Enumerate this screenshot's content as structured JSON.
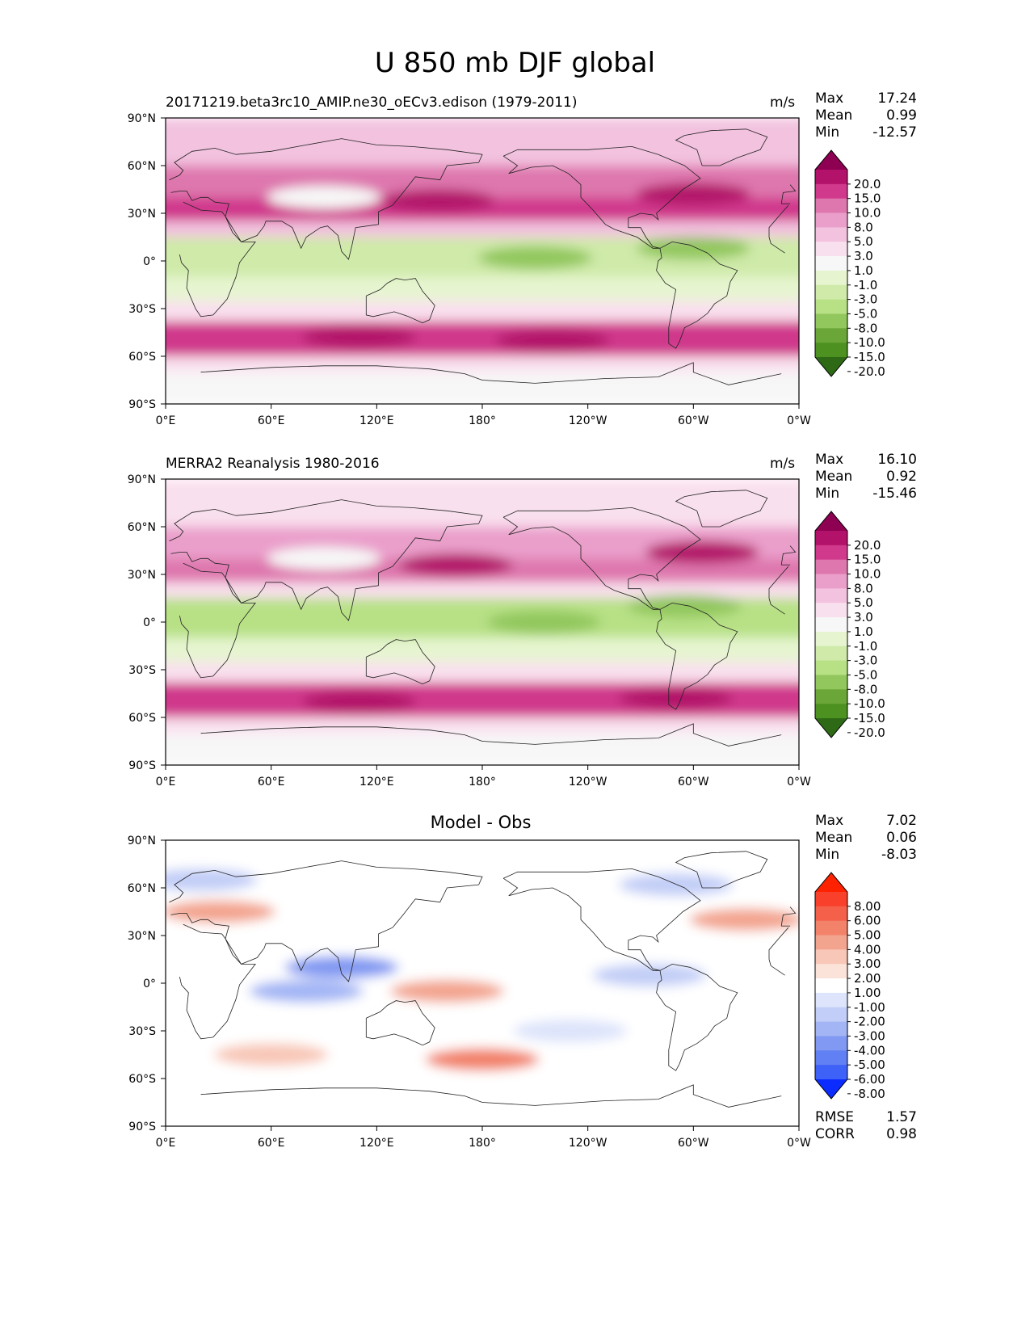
{
  "title": "U 850 mb DJF global",
  "panels": [
    {
      "id": "model",
      "title_left": "20171219.beta3rc10_AMIP.ne30_oECv3.edison (1979-2011)",
      "title_center": "",
      "units": "m/s",
      "stats": [
        {
          "label": "Max",
          "value": "17.24"
        },
        {
          "label": "Mean",
          "value": "0.99"
        },
        {
          "label": "Min",
          "value": "-12.57"
        }
      ],
      "extra_stats": []
    },
    {
      "id": "obs",
      "title_left": "MERRA2 Reanalysis 1980-2016",
      "title_center": "",
      "units": "m/s",
      "stats": [
        {
          "label": "Max",
          "value": "16.10"
        },
        {
          "label": "Mean",
          "value": "0.92"
        },
        {
          "label": "Min",
          "value": "-15.46"
        }
      ],
      "extra_stats": []
    },
    {
      "id": "diff",
      "title_left": "",
      "title_center": "Model - Obs",
      "units": "",
      "stats": [
        {
          "label": "Max",
          "value": "7.02"
        },
        {
          "label": "Mean",
          "value": "0.06"
        },
        {
          "label": "Min",
          "value": "-8.03"
        }
      ],
      "extra_stats": [
        {
          "label": "RMSE",
          "value": "1.57"
        },
        {
          "label": "CORR",
          "value": "0.98"
        }
      ]
    }
  ],
  "chart_data": [
    {
      "type": "heatmap",
      "variable": "U 850 mb DJF",
      "xlabel": "",
      "ylabel": "",
      "x_ticks": [
        "0°E",
        "60°E",
        "120°E",
        "180°",
        "120°W",
        "60°W",
        "0°W"
      ],
      "y_ticks": [
        "90°N",
        "60°N",
        "30°N",
        "0°",
        "30°S",
        "60°S",
        "90°S"
      ],
      "xlim": [
        0,
        360
      ],
      "ylim": [
        -90,
        90
      ],
      "colorbar": {
        "levels": [
          "20.0",
          "15.0",
          "10.0",
          "8.0",
          "5.0",
          "3.0",
          "1.0",
          "-1.0",
          "-3.0",
          "-5.0",
          "-8.0",
          "-10.0",
          "-15.0",
          "-20.0"
        ],
        "colors": [
          "#8e0152",
          "#b3126a",
          "#d0398c",
          "#de77ae",
          "#ea9fcb",
          "#f2c2df",
          "#f9e0ee",
          "#f7f7f7",
          "#e6f5d0",
          "#cfeaa9",
          "#b8e186",
          "#92c75d",
          "#6ba638",
          "#4d9221",
          "#2e6a16"
        ],
        "extend": "both"
      },
      "bands_by_latitude": [
        {
          "lat": [
            60,
            90
          ],
          "value": 3.0
        },
        {
          "lat": [
            40,
            60
          ],
          "value": 8.0
        },
        {
          "lat": [
            25,
            40
          ],
          "value": 10.0
        },
        {
          "lat": [
            15,
            25
          ],
          "value": 3.0
        },
        {
          "lat": [
            -10,
            15
          ],
          "value": -5.0
        },
        {
          "lat": [
            -25,
            -10
          ],
          "value": -3.0
        },
        {
          "lat": [
            -38,
            -25
          ],
          "value": 1.0
        },
        {
          "lat": [
            -60,
            -38
          ],
          "value": 12.0
        },
        {
          "lat": [
            -70,
            -60
          ],
          "value": 1.0
        },
        {
          "lat": [
            -90,
            -70
          ],
          "value": 0.0
        }
      ],
      "features": [
        {
          "lon": 155,
          "lat": 38,
          "value": 15.0
        },
        {
          "lon": 300,
          "lat": 42,
          "value": 15.0
        },
        {
          "lon": 110,
          "lat": -48,
          "value": 17.0
        },
        {
          "lon": 220,
          "lat": -50,
          "value": 17.0
        },
        {
          "lon": 210,
          "lat": 2,
          "value": -10.0
        },
        {
          "lon": 300,
          "lat": 8,
          "value": -10.0
        },
        {
          "lon": 90,
          "lat": 40,
          "value": 0.0
        }
      ]
    },
    {
      "type": "heatmap",
      "variable": "U 850 mb DJF",
      "xlabel": "",
      "ylabel": "",
      "x_ticks": [
        "0°E",
        "60°E",
        "120°E",
        "180°",
        "120°W",
        "60°W",
        "0°W"
      ],
      "y_ticks": [
        "90°N",
        "60°N",
        "30°N",
        "0°",
        "30°S",
        "60°S",
        "90°S"
      ],
      "xlim": [
        0,
        360
      ],
      "ylim": [
        -90,
        90
      ],
      "colorbar": {
        "levels": [
          "20.0",
          "15.0",
          "10.0",
          "8.0",
          "5.0",
          "3.0",
          "1.0",
          "-1.0",
          "-3.0",
          "-5.0",
          "-8.0",
          "-10.0",
          "-15.0",
          "-20.0"
        ],
        "colors": [
          "#8e0152",
          "#b3126a",
          "#d0398c",
          "#de77ae",
          "#ea9fcb",
          "#f2c2df",
          "#f9e0ee",
          "#f7f7f7",
          "#e6f5d0",
          "#cfeaa9",
          "#b8e186",
          "#92c75d",
          "#6ba638",
          "#4d9221",
          "#2e6a16"
        ],
        "extend": "both"
      },
      "bands_by_latitude": [
        {
          "lat": [
            60,
            90
          ],
          "value": 2.0
        },
        {
          "lat": [
            40,
            60
          ],
          "value": 6.0
        },
        {
          "lat": [
            25,
            40
          ],
          "value": 8.0
        },
        {
          "lat": [
            15,
            25
          ],
          "value": 2.0
        },
        {
          "lat": [
            -10,
            15
          ],
          "value": -6.0
        },
        {
          "lat": [
            -25,
            -10
          ],
          "value": -3.0
        },
        {
          "lat": [
            -38,
            -25
          ],
          "value": 1.0
        },
        {
          "lat": [
            -60,
            -38
          ],
          "value": 11.0
        },
        {
          "lat": [
            -70,
            -60
          ],
          "value": 1.0
        },
        {
          "lat": [
            -90,
            -70
          ],
          "value": 0.0
        }
      ],
      "features": [
        {
          "lon": 165,
          "lat": 36,
          "value": 15.0
        },
        {
          "lon": 305,
          "lat": 44,
          "value": 15.0
        },
        {
          "lon": 110,
          "lat": -50,
          "value": 15.0
        },
        {
          "lon": 290,
          "lat": -48,
          "value": 15.0
        },
        {
          "lon": 215,
          "lat": 0,
          "value": -10.0
        },
        {
          "lon": 295,
          "lat": 10,
          "value": -10.0
        },
        {
          "lon": 90,
          "lat": 40,
          "value": 0.0
        }
      ]
    },
    {
      "type": "heatmap",
      "variable": "Model - Obs",
      "xlabel": "",
      "ylabel": "",
      "x_ticks": [
        "0°E",
        "60°E",
        "120°E",
        "180°",
        "120°W",
        "60°W",
        "0°W"
      ],
      "y_ticks": [
        "90°N",
        "60°N",
        "30°N",
        "0°",
        "30°S",
        "60°S",
        "90°S"
      ],
      "xlim": [
        0,
        360
      ],
      "ylim": [
        -90,
        90
      ],
      "colorbar": {
        "levels": [
          "8.00",
          "6.00",
          "5.00",
          "4.00",
          "3.00",
          "2.00",
          "1.00",
          "-1.00",
          "-2.00",
          "-3.00",
          "-4.00",
          "-5.00",
          "-6.00",
          "-8.00"
        ],
        "colors": [
          "#ff2200",
          "#f8402b",
          "#f5604a",
          "#f2826a",
          "#f3a48f",
          "#f8c7b7",
          "#fbe3da",
          "#ffffff",
          "#dde4fb",
          "#c2cef7",
          "#a3b5f5",
          "#8199f2",
          "#6180f3",
          "#3e62f7",
          "#0c2bff"
        ],
        "extend": "both"
      },
      "bands_by_latitude": [
        {
          "lat": [
            -90,
            90
          ],
          "value": 0.0
        }
      ],
      "features": [
        {
          "lon": 30,
          "lat": 45,
          "value": 3.0
        },
        {
          "lon": 180,
          "lat": -48,
          "value": 4.0
        },
        {
          "lon": 60,
          "lat": -45,
          "value": 2.0
        },
        {
          "lon": 160,
          "lat": -5,
          "value": 3.0
        },
        {
          "lon": 330,
          "lat": 40,
          "value": 3.0
        },
        {
          "lon": 100,
          "lat": 10,
          "value": -5.0
        },
        {
          "lon": 80,
          "lat": -5,
          "value": -3.5
        },
        {
          "lon": 275,
          "lat": 5,
          "value": -3.0
        },
        {
          "lon": 20,
          "lat": 65,
          "value": -3.0
        },
        {
          "lon": 290,
          "lat": 62,
          "value": -3.0
        },
        {
          "lon": 230,
          "lat": -30,
          "value": -1.5
        }
      ]
    }
  ]
}
